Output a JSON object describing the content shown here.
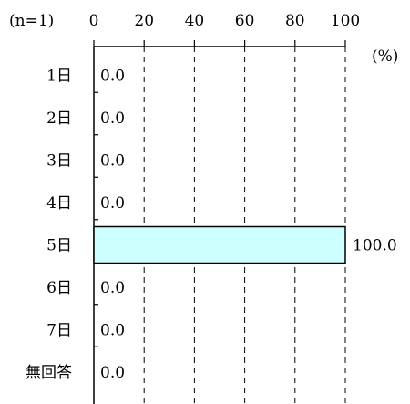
{
  "chart_data": {
    "type": "bar",
    "orientation": "horizontal",
    "sample_note": "(n=1)",
    "unit_label": "(%)",
    "categories": [
      "1日",
      "2日",
      "3日",
      "4日",
      "5日",
      "6日",
      "7日",
      "無回答"
    ],
    "values": [
      0.0,
      0.0,
      0.0,
      0.0,
      100.0,
      0.0,
      0.0,
      0.0
    ],
    "value_labels": [
      "0.0",
      "0.0",
      "0.0",
      "0.0",
      "100.0",
      "0.0",
      "0.0",
      "0.0"
    ],
    "x_ticks": [
      "0",
      "20",
      "40",
      "60",
      "80",
      "100"
    ],
    "xlim": [
      0,
      100
    ],
    "grid": "vertical dashed",
    "bar_fill": "#ccffff",
    "bar_stroke": "#000000",
    "grid_color": "#000000"
  }
}
